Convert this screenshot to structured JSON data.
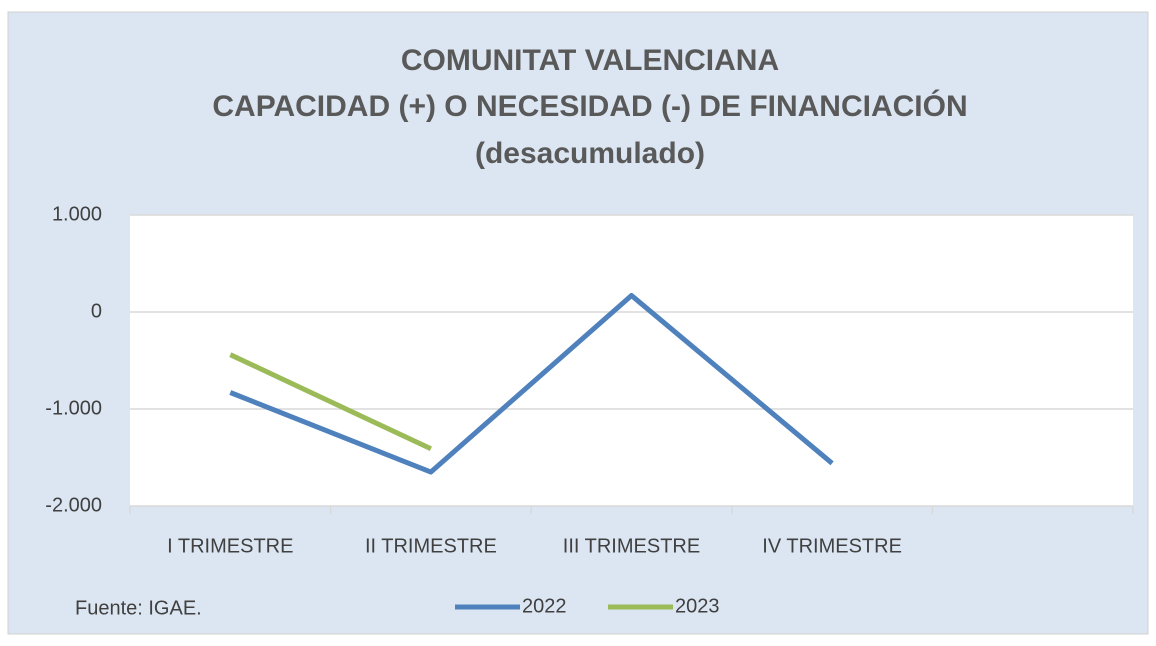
{
  "chart_data": {
    "type": "line",
    "title": [
      "COMUNITAT VALENCIANA",
      "CAPACIDAD (+) O NECESIDAD (-) DE FINANCIACIÓN",
      "(desacumulado)"
    ],
    "annotation": "Fuente: IGAE.",
    "categories": [
      "I TRIMESTRE",
      "II TRIMESTRE",
      "III TRIMESTRE",
      "IV TRIMESTRE",
      null
    ],
    "series": [
      {
        "name": "2022",
        "color": "#4f81bd",
        "values": [
          -830,
          -1650,
          170,
          -1560,
          null
        ]
      },
      {
        "name": "2023",
        "color": "#9bbb59",
        "values": [
          -440,
          -1410,
          null,
          null,
          null
        ]
      }
    ],
    "ylim": [
      -2000,
      1000
    ],
    "yticks": [
      {
        "value": 1000,
        "label": "1.000"
      },
      0,
      {
        "value": -1000,
        "label": "-1.000"
      },
      {
        "value": -2000,
        "label": "-2.000"
      }
    ],
    "grid": true,
    "legend": "bottom"
  }
}
